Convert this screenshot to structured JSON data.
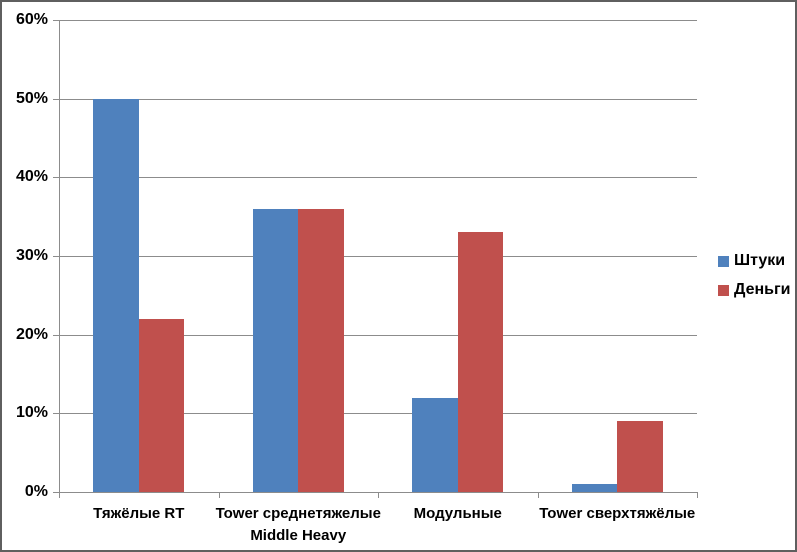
{
  "chart_data": {
    "type": "bar",
    "categories": [
      "Тяжёлые RT",
      "Tower среднетяжелые Middle Heavy",
      "Модульные",
      "Tower сверхтяжёлые"
    ],
    "series": [
      {
        "name": "Штуки",
        "color": "#4F81BD",
        "values": [
          50,
          36,
          12,
          1
        ]
      },
      {
        "name": "Деньги",
        "color": "#C0504D",
        "values": [
          22,
          36,
          33,
          9
        ]
      }
    ],
    "y_axis": {
      "min": 0,
      "max": 60,
      "ticks": [
        0,
        10,
        20,
        30,
        40,
        50,
        60
      ],
      "tick_labels": [
        "0%",
        "10%",
        "20%",
        "30%",
        "40%",
        "50%",
        "60%"
      ],
      "unit": "%"
    },
    "grid": true,
    "legend_position": "right",
    "colors": {
      "gridline": "#8c8c8c",
      "axis": "#8c8c8c",
      "text": "#000000",
      "background": "#ffffff",
      "frame_border": "#5f5f5f"
    }
  }
}
